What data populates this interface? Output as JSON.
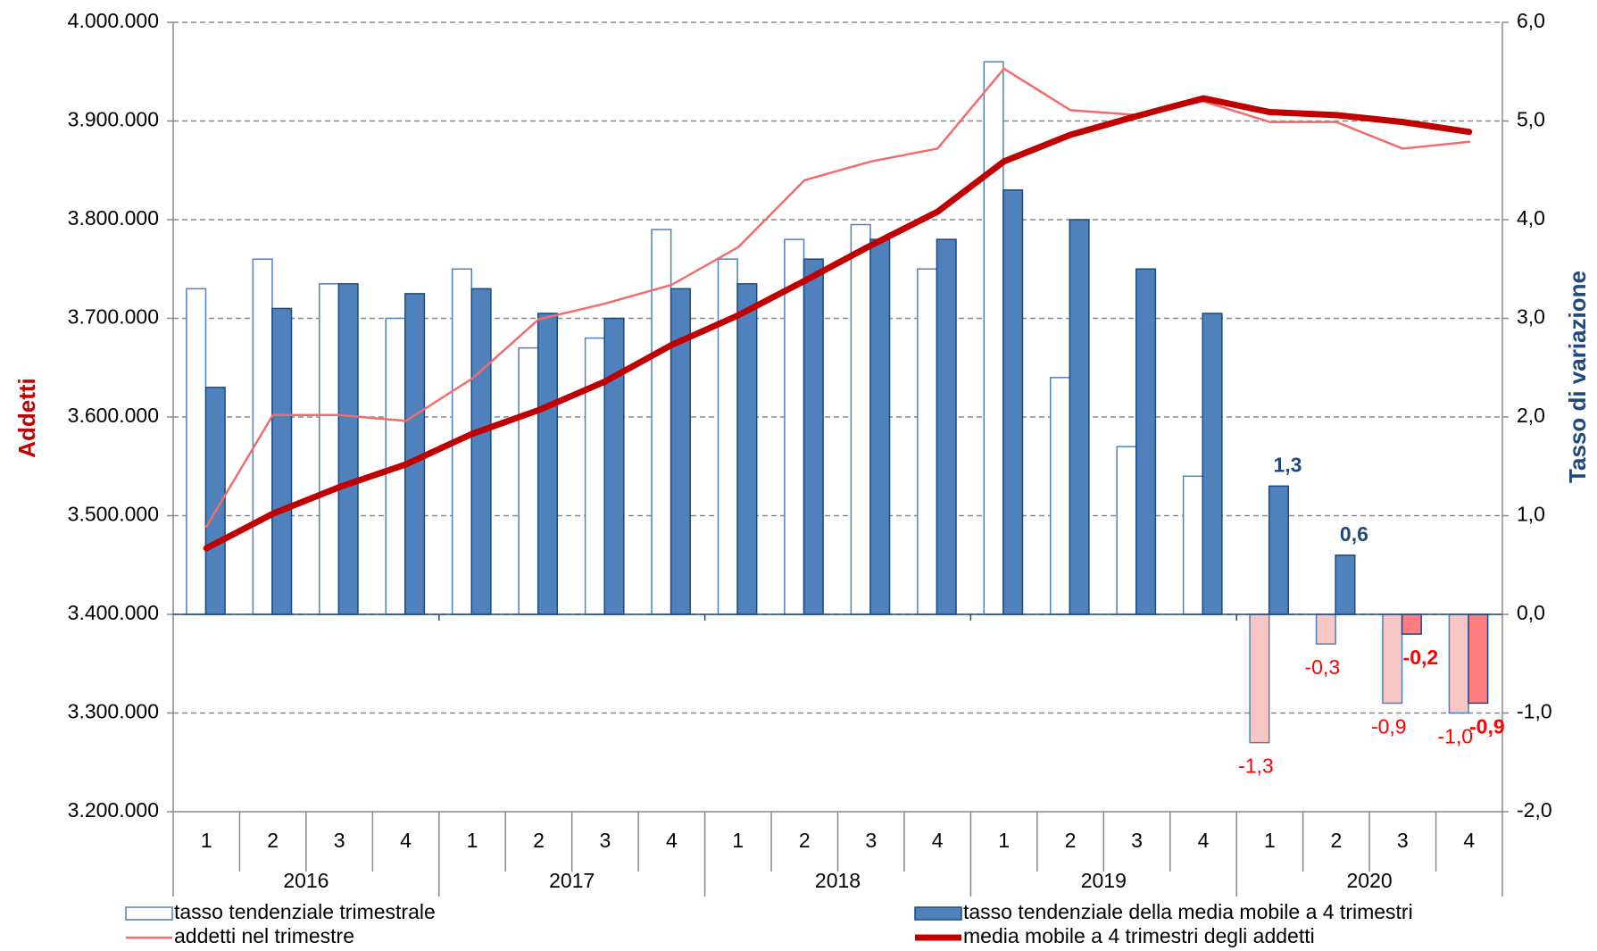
{
  "chart_data": {
    "type": "bar_line",
    "y_label": "Addetti",
    "y2_label": "Tasso di variazione",
    "categories": [
      "1",
      "2",
      "3",
      "4",
      "1",
      "2",
      "3",
      "4",
      "1",
      "2",
      "3",
      "4",
      "1",
      "2",
      "3",
      "4",
      "1",
      "2",
      "3",
      "4"
    ],
    "years": [
      "2016",
      "2017",
      "2018",
      "2019",
      "2020"
    ],
    "ylim": [
      3200000,
      4000000
    ],
    "yticks": [
      {
        "value": 3200000,
        "label": "3.200.000"
      },
      {
        "value": 3300000,
        "label": "3.300.000"
      },
      {
        "value": 3400000,
        "label": "3.400.000"
      },
      {
        "value": 3500000,
        "label": "3.500.000"
      },
      {
        "value": 3600000,
        "label": "3.600.000"
      },
      {
        "value": 3700000,
        "label": "3.700.000"
      },
      {
        "value": 3800000,
        "label": "3.800.000"
      },
      {
        "value": 3900000,
        "label": "3.900.000"
      },
      {
        "value": 4000000,
        "label": "4.000.000"
      }
    ],
    "y2lim": [
      -2,
      6
    ],
    "y2ticks": [
      {
        "value": -2,
        "label": "-2,0"
      },
      {
        "value": -1,
        "label": "-1,0"
      },
      {
        "value": 0,
        "label": "0,0"
      },
      {
        "value": 1,
        "label": "1,0"
      },
      {
        "value": 2,
        "label": "2,0"
      },
      {
        "value": 3,
        "label": "3,0"
      },
      {
        "value": 4,
        "label": "4,0"
      },
      {
        "value": 5,
        "label": "5,0"
      },
      {
        "value": 6,
        "label": "6,0"
      }
    ],
    "grid": true,
    "series": [
      {
        "name": "tasso tendenziale trimestrale",
        "type": "bar",
        "axis": "y2",
        "color": "#4f81bd",
        "fill": "#ffffff",
        "negative_fill": "#f9c6c6",
        "values": [
          3.3,
          3.6,
          3.35,
          3.0,
          3.5,
          2.7,
          2.8,
          3.9,
          3.6,
          3.8,
          3.95,
          3.5,
          5.6,
          2.4,
          1.7,
          1.4,
          -1.3,
          -0.3,
          -0.9,
          -1.0
        ],
        "value_labels": [
          null,
          null,
          null,
          null,
          null,
          null,
          null,
          null,
          null,
          null,
          null,
          null,
          null,
          null,
          null,
          null,
          "-1,3",
          "-0,3",
          "-0,9",
          "-1,0"
        ]
      },
      {
        "name": "tasso tendenziale della media mobile a 4 trimestri",
        "type": "bar",
        "axis": "y2",
        "color": "#1f497d",
        "fill": "#4f81bd",
        "negative_fill": "#ff7c80",
        "values": [
          2.3,
          3.1,
          3.35,
          3.25,
          3.3,
          3.05,
          3.0,
          3.3,
          3.35,
          3.6,
          3.8,
          3.8,
          4.3,
          4.0,
          3.5,
          3.05,
          1.3,
          0.6,
          -0.2,
          -0.9
        ],
        "value_labels": [
          null,
          null,
          null,
          null,
          null,
          null,
          null,
          null,
          null,
          null,
          null,
          null,
          null,
          null,
          null,
          null,
          "1,3",
          "0,6",
          "-0,2",
          "-0,9"
        ]
      },
      {
        "name": "addetti nel trimestre",
        "type": "line",
        "color": "#f26c6c",
        "line_width": 2.5,
        "values": [
          3489000,
          3602000,
          3602000,
          3596000,
          3639000,
          3699000,
          3715000,
          3734000,
          3772000,
          3840000,
          3859000,
          3872000,
          3953000,
          3911000,
          3906000,
          3920000,
          3899000,
          3899000,
          3872000,
          3879000
        ]
      },
      {
        "name": "media mobile a 4 trimestri degli addetti",
        "type": "line",
        "color": "#c00000",
        "line_width": 7,
        "values": [
          3467000,
          3502000,
          3529000,
          3552000,
          3583000,
          3607000,
          3636000,
          3673000,
          3703000,
          3738000,
          3774000,
          3808000,
          3859000,
          3886000,
          3905000,
          3923000,
          3909000,
          3906000,
          3899000,
          3889000
        ]
      }
    ]
  }
}
